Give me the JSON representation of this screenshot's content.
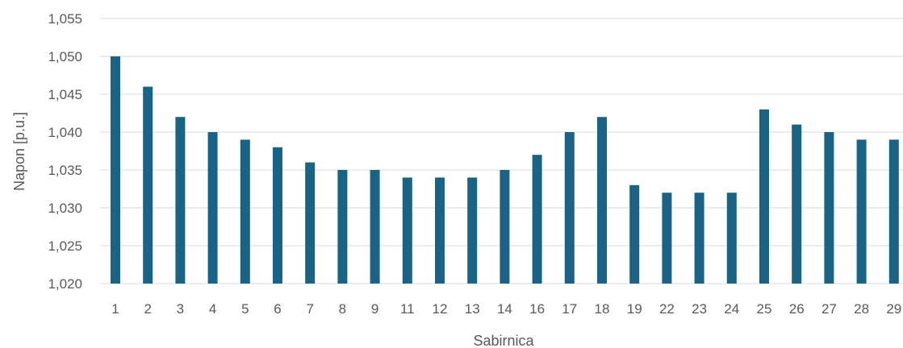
{
  "chart_data": {
    "type": "bar",
    "title": "",
    "xlabel": "Sabirnica",
    "ylabel": "Napon [p.u.]",
    "categories": [
      "1",
      "2",
      "3",
      "4",
      "5",
      "6",
      "7",
      "8",
      "9",
      "11",
      "12",
      "13",
      "14",
      "16",
      "17",
      "18",
      "19",
      "22",
      "23",
      "24",
      "25",
      "26",
      "27",
      "28",
      "29"
    ],
    "values": [
      1.05,
      1.046,
      1.042,
      1.04,
      1.039,
      1.038,
      1.036,
      1.035,
      1.035,
      1.034,
      1.034,
      1.034,
      1.035,
      1.037,
      1.04,
      1.042,
      1.033,
      1.032,
      1.032,
      1.032,
      1.043,
      1.041,
      1.04,
      1.039,
      1.039
    ],
    "ylim": [
      1.02,
      1.055
    ],
    "ytick_step": 0.005,
    "yticks": [
      "1,020",
      "1,025",
      "1,030",
      "1,035",
      "1,040",
      "1,045",
      "1,050",
      "1,055"
    ],
    "grid": true,
    "legend": "none",
    "colors": {
      "bar": "#1a6384",
      "grid": "#d9d9d9",
      "text": "#595959"
    }
  }
}
